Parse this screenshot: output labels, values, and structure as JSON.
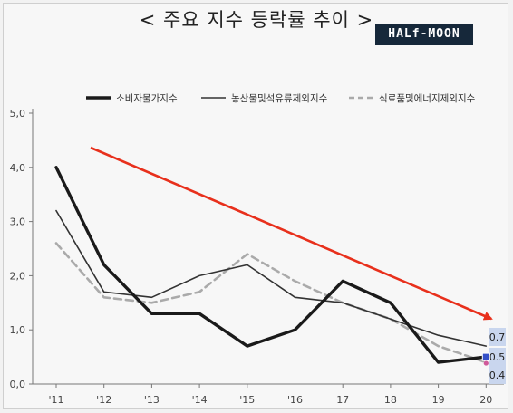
{
  "header": {
    "title": "< 주요 지수 등락률 추이 >",
    "logo": "HALf-MOON"
  },
  "chart_data": {
    "type": "line",
    "x": [
      "'11",
      "'12",
      "'13",
      "'14",
      "'15",
      "'16",
      "17",
      "18",
      "19",
      "20"
    ],
    "ylim": [
      0,
      5
    ],
    "yticks": [
      "0,0",
      "1,0",
      "2,0",
      "3,0",
      "4,0",
      "5,0"
    ],
    "grid": false,
    "legend_position": "top",
    "series": [
      {
        "name": "소비자물가지수",
        "color": "#1a1a1a",
        "style": "thick",
        "values": [
          4.0,
          2.2,
          1.3,
          1.3,
          0.7,
          1.0,
          1.9,
          1.5,
          0.4,
          0.5
        ]
      },
      {
        "name": "농산물및석유류제외지수",
        "color": "#333333",
        "style": "thin",
        "values": [
          3.2,
          1.7,
          1.6,
          2.0,
          2.2,
          1.6,
          1.5,
          1.2,
          0.9,
          0.7
        ]
      },
      {
        "name": "식료품및에너지제외지수",
        "color": "#aaaaaa",
        "style": "dashed",
        "values": [
          2.6,
          1.6,
          1.5,
          1.7,
          2.4,
          1.9,
          1.5,
          1.2,
          0.7,
          0.4
        ]
      }
    ],
    "end_labels": [
      "0.7",
      "0.5",
      "0.4"
    ],
    "trend_arrow_color": "#e8301c"
  }
}
